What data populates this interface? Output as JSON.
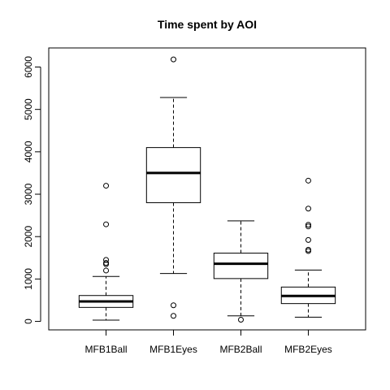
{
  "chart_data": {
    "type": "boxplot",
    "title": "Time spent by AOI",
    "xlabel": "",
    "ylabel": "",
    "ylim": [
      -200,
      6450
    ],
    "yticks": [
      0,
      1000,
      2000,
      3000,
      4000,
      5000,
      6000
    ],
    "categories": [
      "MFB1Ball",
      "MFB1Eyes",
      "MFB2Ball",
      "MFB2Eyes"
    ],
    "boxes": [
      {
        "name": "MFB1Ball",
        "whisker_low": 30,
        "q1": 330,
        "median": 470,
        "q3": 610,
        "whisker_high": 1060,
        "outliers": [
          1200,
          1350,
          1380,
          1450,
          2290,
          3200
        ]
      },
      {
        "name": "MFB1Eyes",
        "whisker_low": 1130,
        "q1": 2800,
        "median": 3500,
        "q3": 4100,
        "whisker_high": 5280,
        "outliers": [
          130,
          380,
          6180
        ]
      },
      {
        "name": "MFB2Ball",
        "whisker_low": 130,
        "q1": 1010,
        "median": 1360,
        "q3": 1610,
        "whisker_high": 2370,
        "outliers": [
          40
        ]
      },
      {
        "name": "MFB2Eyes",
        "whisker_low": 100,
        "q1": 420,
        "median": 600,
        "q3": 810,
        "whisker_high": 1210,
        "outliers": [
          1660,
          1690,
          1920,
          2240,
          2280,
          2660,
          3320
        ]
      }
    ],
    "grid": false,
    "legend": "none"
  }
}
